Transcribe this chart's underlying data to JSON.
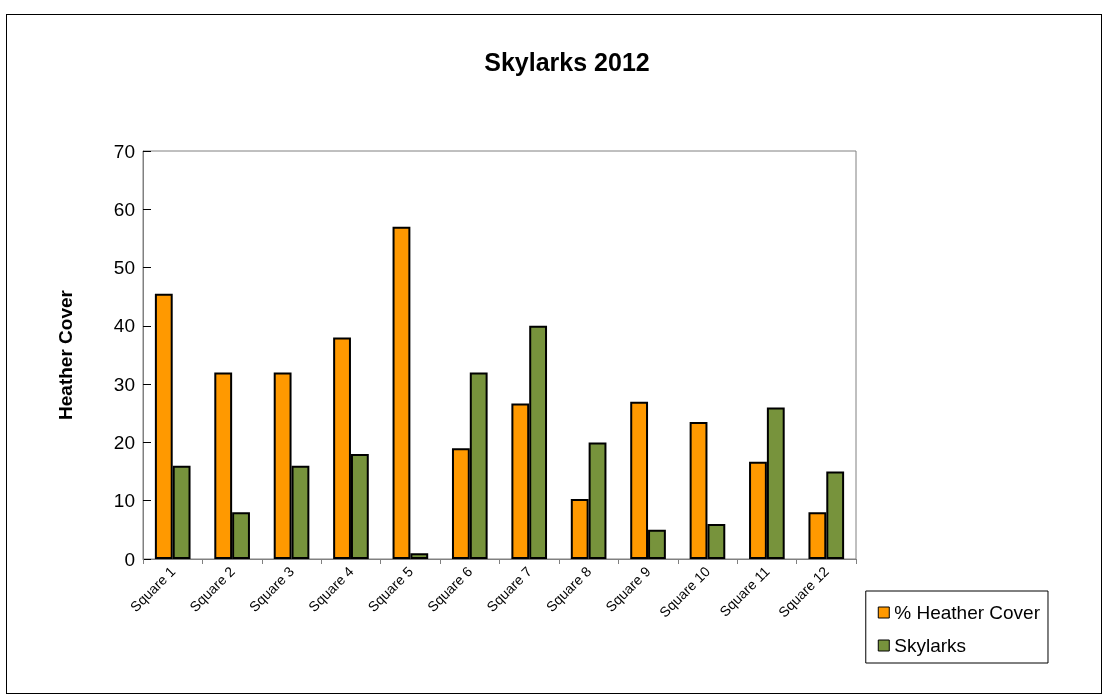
{
  "chart_data": {
    "type": "bar",
    "title": "Skylarks 2012",
    "ylabel": "Heather Cover",
    "categories": [
      "Square 1",
      "Square 2",
      "Square 3",
      "Square 4",
      "Square 5",
      "Square 6",
      "Square 7",
      "Square 8",
      "Square 9",
      "Square 10",
      "Square 11",
      "Square 12"
    ],
    "series": [
      {
        "name": "% Heather Cover",
        "color": "#ff9900",
        "values": [
          45.5,
          32,
          32,
          38,
          57,
          19,
          26.7,
          10.3,
          27,
          23.5,
          16.7,
          8
        ]
      },
      {
        "name": "Skylarks",
        "color": "#77933c",
        "values": [
          16,
          8,
          16,
          18,
          1,
          32,
          40,
          20,
          5,
          6,
          26,
          15
        ]
      }
    ],
    "ylim": [
      0,
      70
    ],
    "yticks": [
      0,
      10,
      20,
      30,
      40,
      50,
      60,
      70
    ],
    "grid": false,
    "legend": "bottom right"
  }
}
